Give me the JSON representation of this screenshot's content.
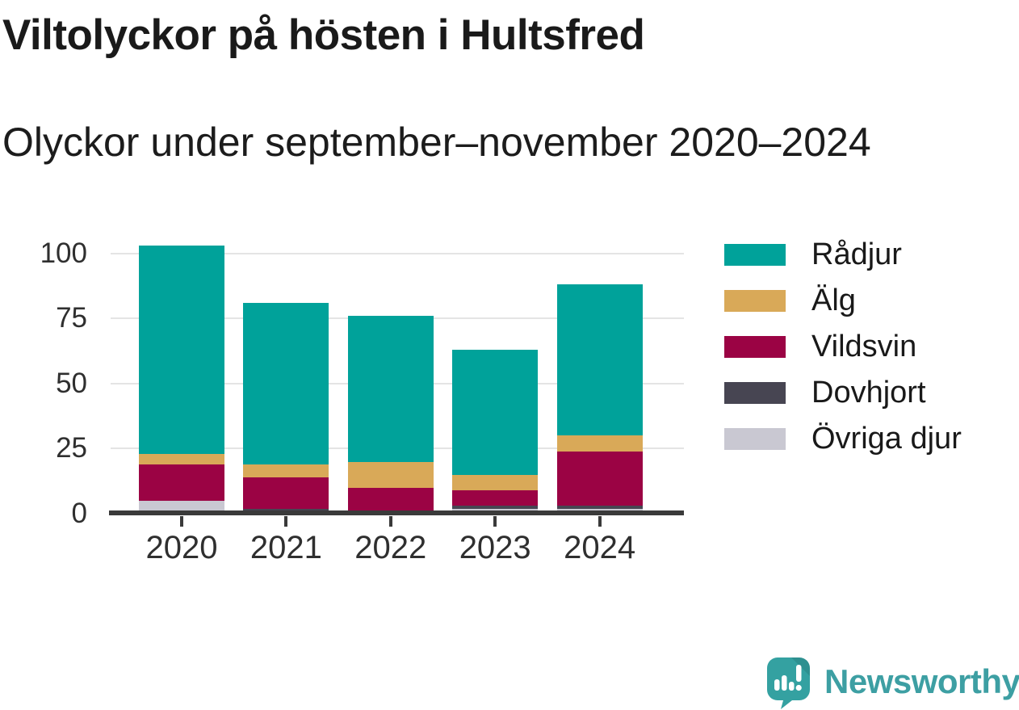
{
  "title": "Viltolyckor på hösten i Hultsfred",
  "subtitle": "Olyckor under september–november 2020–2024",
  "chart_data": {
    "type": "bar",
    "stacked": true,
    "title": "Viltolyckor på hösten i Hultsfred",
    "subtitle": "Olyckor under september–november 2020–2024",
    "categories": [
      "2020",
      "2021",
      "2022",
      "2023",
      "2024"
    ],
    "series": [
      {
        "name": "Rådjur",
        "color": "#00A29A",
        "values": [
          80,
          62,
          56,
          48,
          58
        ]
      },
      {
        "name": "Älg",
        "color": "#D9A958",
        "values": [
          4,
          5,
          10,
          6,
          6
        ]
      },
      {
        "name": "Vildsvin",
        "color": "#9B0344",
        "values": [
          14,
          12,
          10,
          6,
          21
        ]
      },
      {
        "name": "Dovhjort",
        "color": "#474552",
        "values": [
          0,
          2,
          0,
          1,
          1
        ]
      },
      {
        "name": "Övriga djur",
        "color": "#C9C8D2",
        "values": [
          5,
          0,
          0,
          2,
          2
        ]
      }
    ],
    "totals": [
      103,
      81,
      76,
      63,
      88
    ],
    "stack_order_bottom_to_top": [
      "Övriga djur",
      "Dovhjort",
      "Vildsvin",
      "Älg",
      "Rådjur"
    ],
    "xlabel": "",
    "ylabel": "",
    "yticks": [
      0,
      25,
      50,
      75,
      100
    ],
    "ylim": [
      0,
      112
    ],
    "grid": "horizontal",
    "legend_position": "right"
  },
  "legend": {
    "items": [
      {
        "label": "Rådjur",
        "color": "#00A29A"
      },
      {
        "label": "Älg",
        "color": "#D9A958"
      },
      {
        "label": "Vildsvin",
        "color": "#9B0344"
      },
      {
        "label": "Dovhjort",
        "color": "#474552"
      },
      {
        "label": "Övriga djur",
        "color": "#C9C8D2"
      }
    ]
  },
  "footer": {
    "brand": "Newsworthy"
  },
  "colors": {
    "accent_teal": "#00A29A",
    "gold": "#D9A958",
    "crimson": "#9B0344",
    "dark_slate": "#474552",
    "light_gray": "#C9C8D2",
    "gridline": "#E4E4E4",
    "axis": "#3A3A3A",
    "brand_teal": "#3D9FA3",
    "text": "#1A1A1A"
  }
}
